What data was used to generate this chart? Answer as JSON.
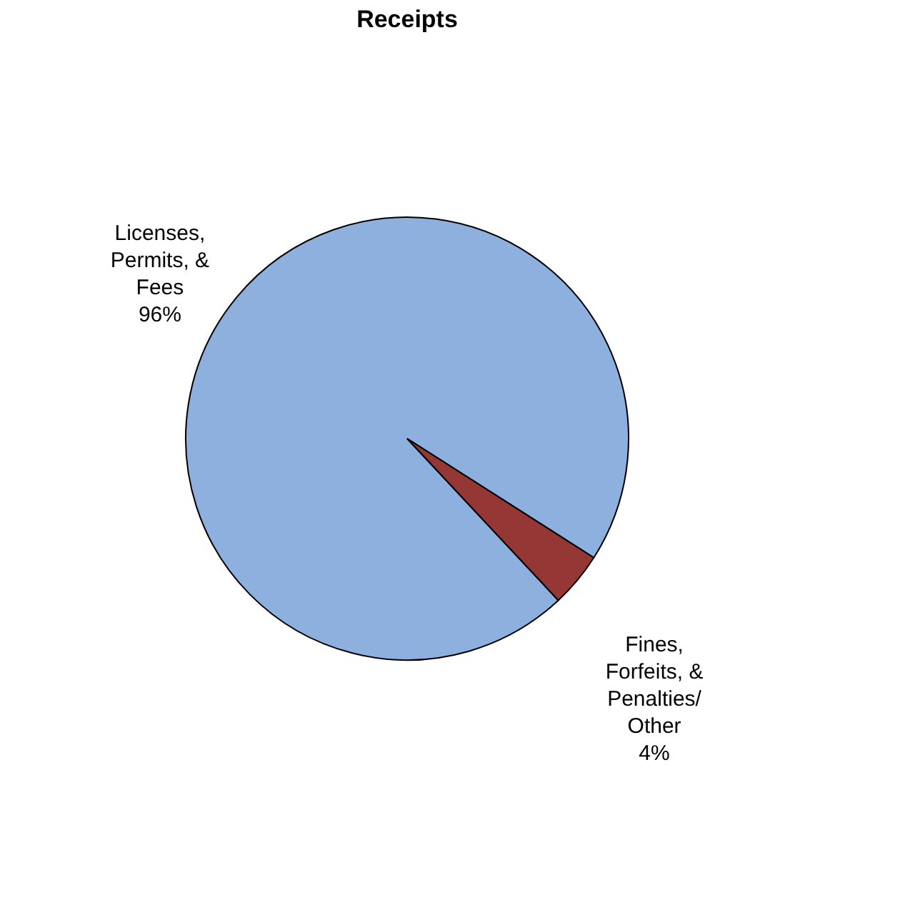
{
  "chart_data": {
    "type": "pie",
    "title": "Receipts",
    "categories": [
      "Licenses, Permits, & Fees",
      "Fines, Forfeits, & Penalties/ Other"
    ],
    "values": [
      96,
      4
    ],
    "value_labels": [
      "96%",
      "4%"
    ],
    "colors": [
      "#8db0de",
      "#953735"
    ],
    "legend": false
  }
}
